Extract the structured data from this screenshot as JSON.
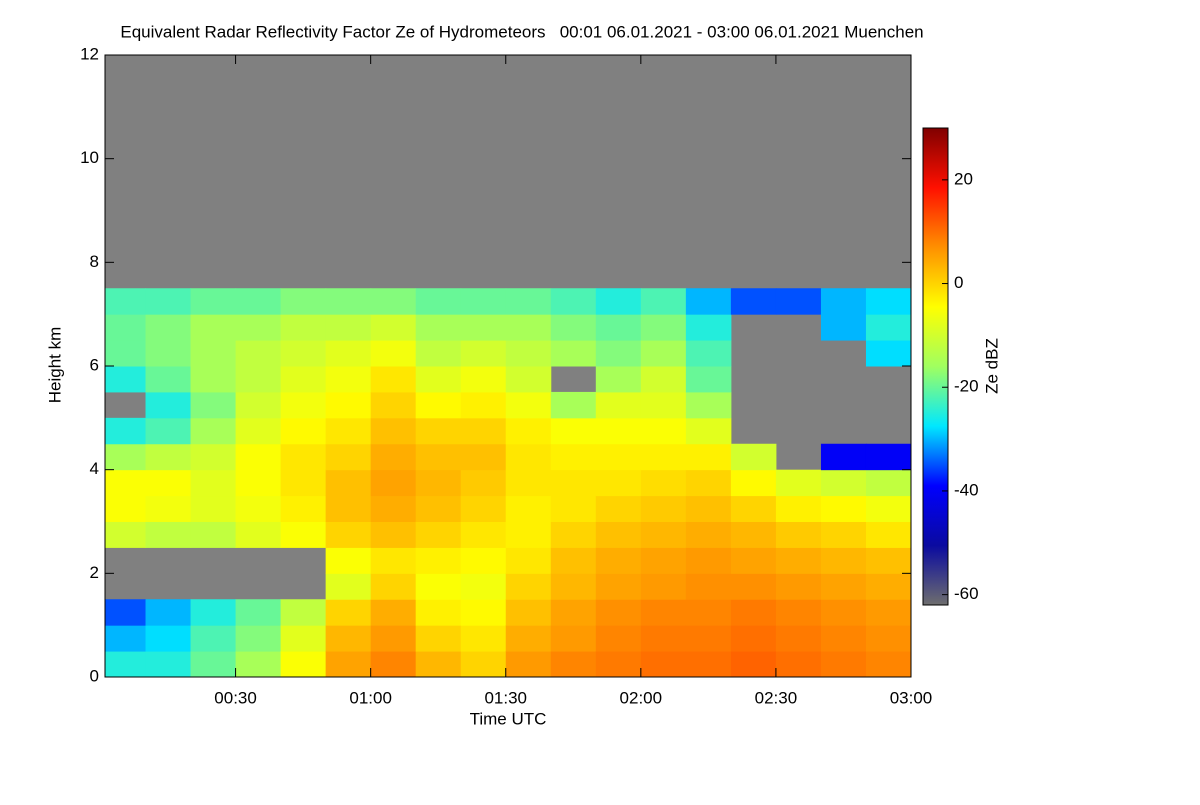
{
  "chart_data": {
    "type": "heatmap",
    "title": "Equivalent Radar Reflectivity Factor Ze of Hydrometeors   00:01 06.01.2021 - 03:00 06.01.2021 Muenchen",
    "xlabel": "Time UTC",
    "ylabel": "Height km",
    "colorbar_label": "Ze dBZ",
    "xlim": [
      1,
      180
    ],
    "xticks": [
      {
        "value": 30,
        "label": "00:30"
      },
      {
        "value": 60,
        "label": "01:00"
      },
      {
        "value": 90,
        "label": "01:30"
      },
      {
        "value": 120,
        "label": "02:00"
      },
      {
        "value": 150,
        "label": "02:30"
      },
      {
        "value": 180,
        "label": "03:00"
      }
    ],
    "ylim": [
      0,
      12
    ],
    "yticks": [
      0,
      2,
      4,
      6,
      8,
      10,
      12
    ],
    "zlim": [
      -62,
      30
    ],
    "zticks": [
      -60,
      -40,
      -20,
      0,
      20
    ],
    "colormap": [
      "#6e6e6e",
      "#0a0aa0",
      "#0000ff",
      "#00e8ff",
      "#a0ff60",
      "#ffff00",
      "#ff9000",
      "#ff1000",
      "#800000"
    ],
    "nodata_color": "#808080",
    "x": [
      5,
      15,
      25,
      35,
      45,
      55,
      65,
      75,
      85,
      95,
      105,
      115,
      125,
      135,
      145,
      155,
      165,
      175
    ],
    "y": [
      0.25,
      0.75,
      1.25,
      1.75,
      2.25,
      2.75,
      3.25,
      3.75,
      4.25,
      4.75,
      5.25,
      5.75,
      6.25,
      6.75,
      7.25,
      7.75
    ],
    "z": [
      [
        -25,
        -30,
        -35,
        null,
        null,
        -10,
        -5,
        -5,
        -15,
        -25,
        null,
        -25,
        -20,
        -20,
        -22,
        null
      ],
      [
        -25,
        -28,
        -30,
        null,
        null,
        -12,
        -6,
        -5,
        -12,
        -22,
        -25,
        -20,
        -18,
        -18,
        -22,
        null
      ],
      [
        -20,
        -22,
        -25,
        null,
        null,
        -12,
        -8,
        -8,
        -10,
        -15,
        -18,
        -15,
        -15,
        -15,
        -20,
        null
      ],
      [
        -15,
        -18,
        -20,
        null,
        null,
        -8,
        -6,
        -5,
        -5,
        -8,
        -10,
        -12,
        -12,
        -15,
        -20,
        null
      ],
      [
        -5,
        -8,
        -12,
        null,
        null,
        -5,
        -3,
        -2,
        -2,
        -4,
        -6,
        -8,
        -10,
        -12,
        -18,
        null
      ],
      [
        5,
        3,
        0,
        -8,
        -5,
        0,
        2,
        2,
        0,
        -2,
        -4,
        -6,
        -8,
        -12,
        -18,
        null
      ],
      [
        8,
        6,
        4,
        0,
        -2,
        2,
        4,
        5,
        4,
        2,
        0,
        -2,
        -6,
        -10,
        -18,
        null
      ],
      [
        3,
        0,
        -3,
        -5,
        -3,
        0,
        2,
        3,
        2,
        0,
        -4,
        -8,
        -12,
        -15,
        -20,
        null
      ],
      [
        0,
        -2,
        -4,
        -6,
        -4,
        -2,
        0,
        1,
        2,
        0,
        -3,
        -6,
        -10,
        -15,
        -20,
        null
      ],
      [
        6,
        4,
        2,
        0,
        -2,
        -3,
        -3,
        -2,
        -2,
        -3,
        -6,
        -10,
        -12,
        -15,
        -20,
        null
      ],
      [
        8,
        6,
        5,
        3,
        2,
        0,
        -2,
        -2,
        -3,
        -5,
        -15,
        null,
        -15,
        -18,
        -22,
        null
      ],
      [
        9,
        8,
        7,
        5,
        4,
        2,
        0,
        -2,
        -3,
        -5,
        -8,
        -15,
        -18,
        -20,
        -25,
        null
      ],
      [
        10,
        9,
        8,
        6,
        5,
        3,
        1,
        -1,
        -3,
        -5,
        -8,
        -10,
        -15,
        -18,
        -22,
        null
      ],
      [
        10,
        9,
        8,
        7,
        6,
        4,
        2,
        0,
        -3,
        -8,
        -15,
        -20,
        -22,
        -25,
        -30,
        null
      ],
      [
        11,
        10,
        9,
        7,
        5,
        3,
        0,
        -4,
        -10,
        null,
        null,
        null,
        null,
        null,
        -35,
        null
      ],
      [
        10,
        9,
        8,
        6,
        4,
        1,
        -3,
        -8,
        null,
        null,
        null,
        null,
        null,
        null,
        -35,
        null
      ],
      [
        9,
        8,
        7,
        5,
        3,
        0,
        -4,
        -10,
        -40,
        null,
        null,
        null,
        null,
        -30,
        -30,
        null
      ],
      [
        8,
        7,
        6,
        4,
        2,
        -2,
        -6,
        -12,
        -40,
        null,
        null,
        null,
        -28,
        -25,
        -28,
        null
      ]
    ]
  }
}
